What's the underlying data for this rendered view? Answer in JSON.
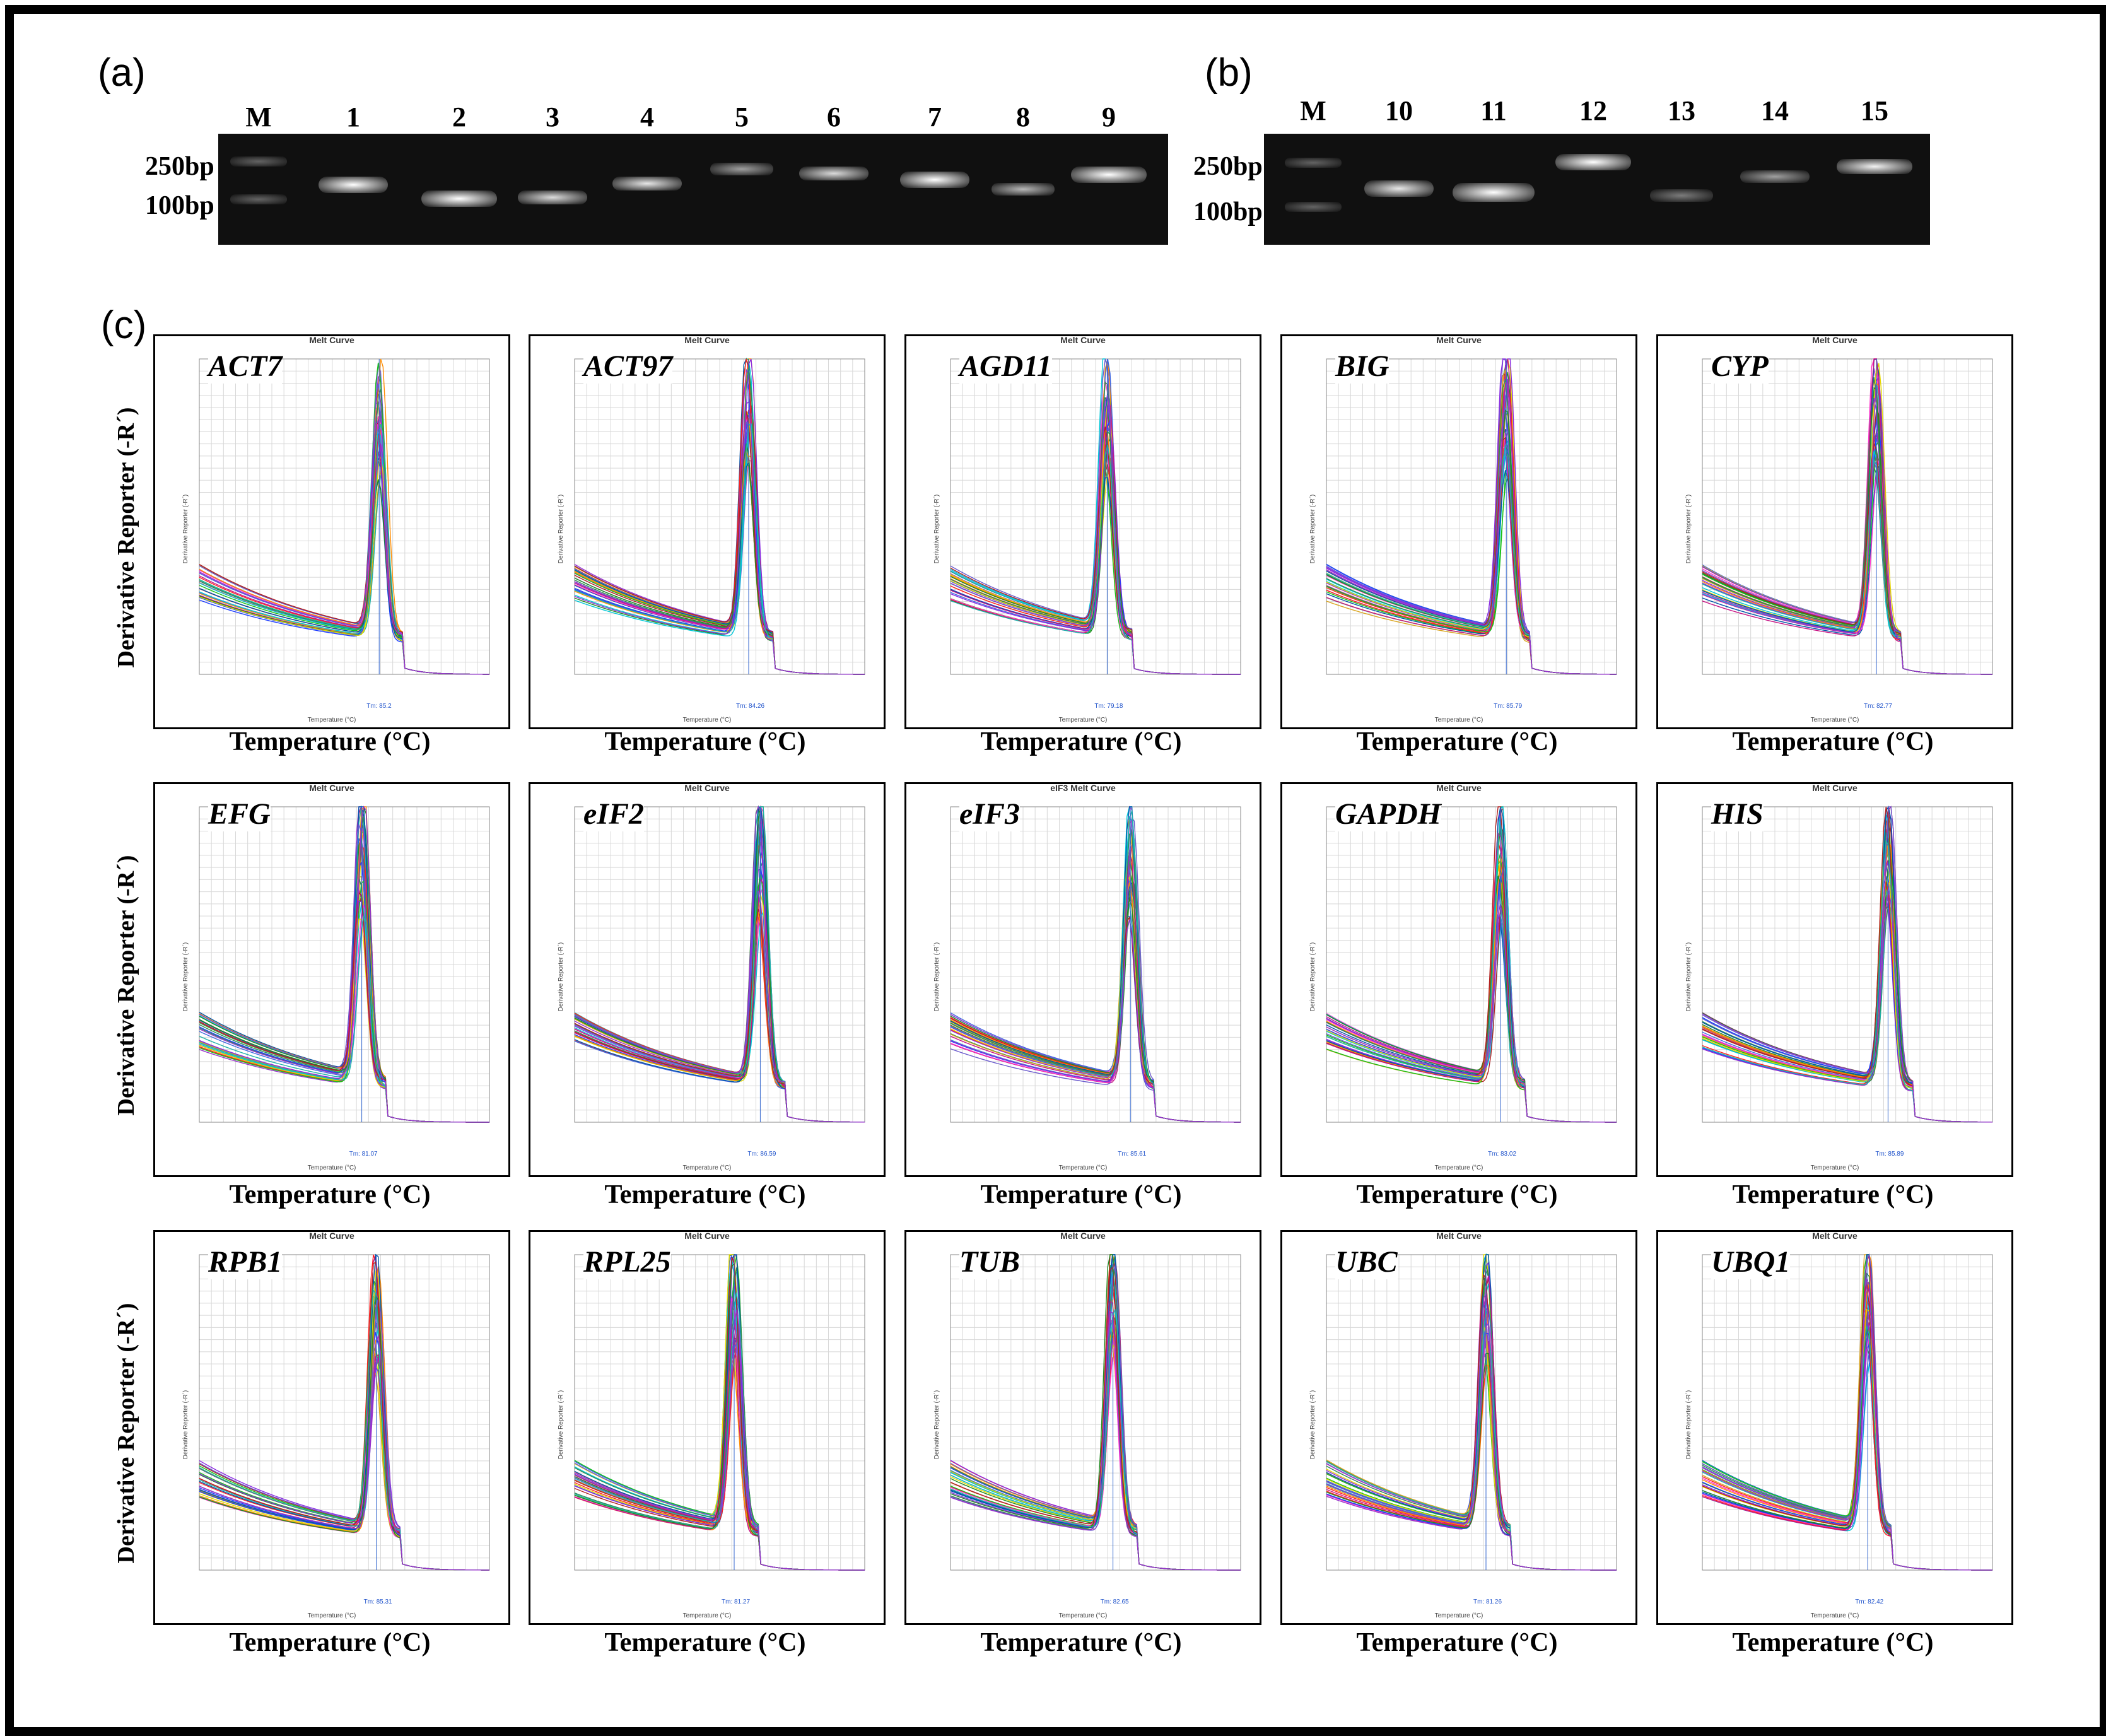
{
  "panels": {
    "a": "(a)",
    "b": "(b)",
    "c": "(c)"
  },
  "gel_a": {
    "lanes": [
      "M",
      "1",
      "2",
      "3",
      "4",
      "5",
      "6",
      "7",
      "8",
      "9"
    ],
    "markers": [
      "250bp",
      "100bp"
    ]
  },
  "gel_b": {
    "lanes": [
      "M",
      "10",
      "11",
      "12",
      "13",
      "14",
      "15"
    ],
    "markers": [
      "250bp",
      "100bp"
    ]
  },
  "axis_labels": {
    "y": "Derivative Reporter (-R´)",
    "x": "Temperature (°C)"
  },
  "melt_curves": [
    {
      "gene": "ACT7",
      "title": "Melt Curve",
      "tm": "Tm: 85.2",
      "peak_x": 0.62,
      "peak_h": 0.88
    },
    {
      "gene": "ACT97",
      "title": "Melt Curve",
      "tm": "Tm: 84.26",
      "peak_x": 0.6,
      "peak_h": 0.95
    },
    {
      "gene": "AGD11",
      "title": "Melt Curve",
      "tm": "Tm: 79.18",
      "peak_x": 0.54,
      "peak_h": 0.9
    },
    {
      "gene": "BIG",
      "title": "Melt Curve",
      "tm": "Tm: 85.79",
      "peak_x": 0.62,
      "peak_h": 0.92
    },
    {
      "gene": "CYP",
      "title": "Melt Curve",
      "tm": "Tm: 82.77",
      "peak_x": 0.6,
      "peak_h": 0.92
    },
    {
      "gene": "EFG",
      "title": "Melt Curve",
      "tm": "Tm: 81.07",
      "peak_x": 0.56,
      "peak_h": 0.95
    },
    {
      "gene": "eIF2",
      "title": "Melt Curve",
      "tm": "Tm: 86.59",
      "peak_x": 0.64,
      "peak_h": 0.92
    },
    {
      "gene": "eIF3",
      "title": "eIF3 Melt Curve",
      "tm": "Tm: 85.61",
      "peak_x": 0.62,
      "peak_h": 0.92
    },
    {
      "gene": "GAPDH",
      "title": "Melt Curve",
      "tm": "Tm: 83.02",
      "peak_x": 0.6,
      "peak_h": 0.92
    },
    {
      "gene": "HIS",
      "title": "Melt Curve",
      "tm": "Tm: 85.89",
      "peak_x": 0.64,
      "peak_h": 0.92
    },
    {
      "gene": "RPB1",
      "title": "Melt Curve",
      "tm": "Tm: 85.31",
      "peak_x": 0.61,
      "peak_h": 0.92
    },
    {
      "gene": "RPL25",
      "title": "Melt Curve",
      "tm": "Tm: 81.27",
      "peak_x": 0.55,
      "peak_h": 0.95
    },
    {
      "gene": "TUB",
      "title": "Melt Curve",
      "tm": "Tm: 82.65",
      "peak_x": 0.56,
      "peak_h": 0.95
    },
    {
      "gene": "UBC",
      "title": "Melt Curve",
      "tm": "Tm: 81.26",
      "peak_x": 0.55,
      "peak_h": 0.95
    },
    {
      "gene": "UBQ1",
      "title": "Melt Curve",
      "tm": "Tm: 82.42",
      "peak_x": 0.57,
      "peak_h": 0.95
    }
  ],
  "melt_axis": {
    "x_title": "Temperature (°C)",
    "y_title": "Derivative Reporter (-R´)"
  }
}
